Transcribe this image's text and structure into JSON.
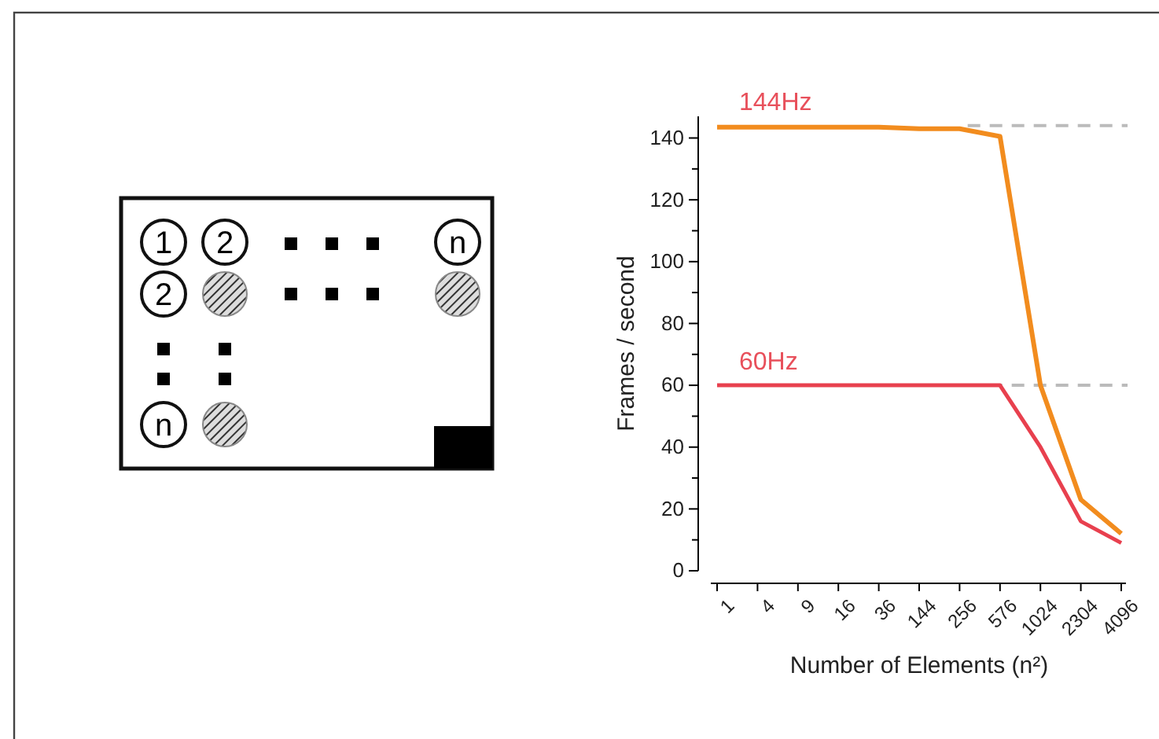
{
  "chart_data": {
    "type": "line",
    "xlabel": "Number of Elements (n²)",
    "ylabel": "Frames / second",
    "categories": [
      "1",
      "4",
      "9",
      "16",
      "36",
      "144",
      "256",
      "576",
      "1024",
      "2304",
      "4096"
    ],
    "series": [
      {
        "color": "#f28c1e",
        "values": [
          143.5,
          143.5,
          143.5,
          143.5,
          143.5,
          143,
          143,
          140.5,
          60,
          23,
          12
        ]
      },
      {
        "color": "#e8404e",
        "values": [
          60,
          60,
          60,
          60,
          60,
          60,
          60,
          60,
          40,
          16,
          9
        ]
      }
    ],
    "ylim": [
      0,
      147
    ],
    "yticks": [
      0,
      {
        "value": 10,
        "label": null
      },
      20,
      {
        "value": 30,
        "label": null
      },
      40,
      {
        "value": 50,
        "label": null
      },
      60,
      {
        "value": 70,
        "label": null
      },
      80,
      {
        "value": 90,
        "label": null
      },
      100,
      {
        "value": 110,
        "label": null
      },
      120,
      {
        "value": 130,
        "label": null
      },
      140
    ],
    "ref_lines": [
      {
        "axis": "y",
        "value": 144,
        "color": "#bbbbbb",
        "line_style": "dashed"
      },
      {
        "axis": "y",
        "value": 60,
        "color": "#bbbbbb",
        "line_style": "dashed"
      }
    ],
    "annotations": [
      "1",
      "2",
      "n",
      "2",
      "n",
      {
        "text": "144Hz",
        "x": "1",
        "y": 144
      },
      {
        "text": "60Hz",
        "x": "1",
        "y": 60
      }
    ],
    "grid": false,
    "marker": "none",
    "line_style": "solid"
  }
}
